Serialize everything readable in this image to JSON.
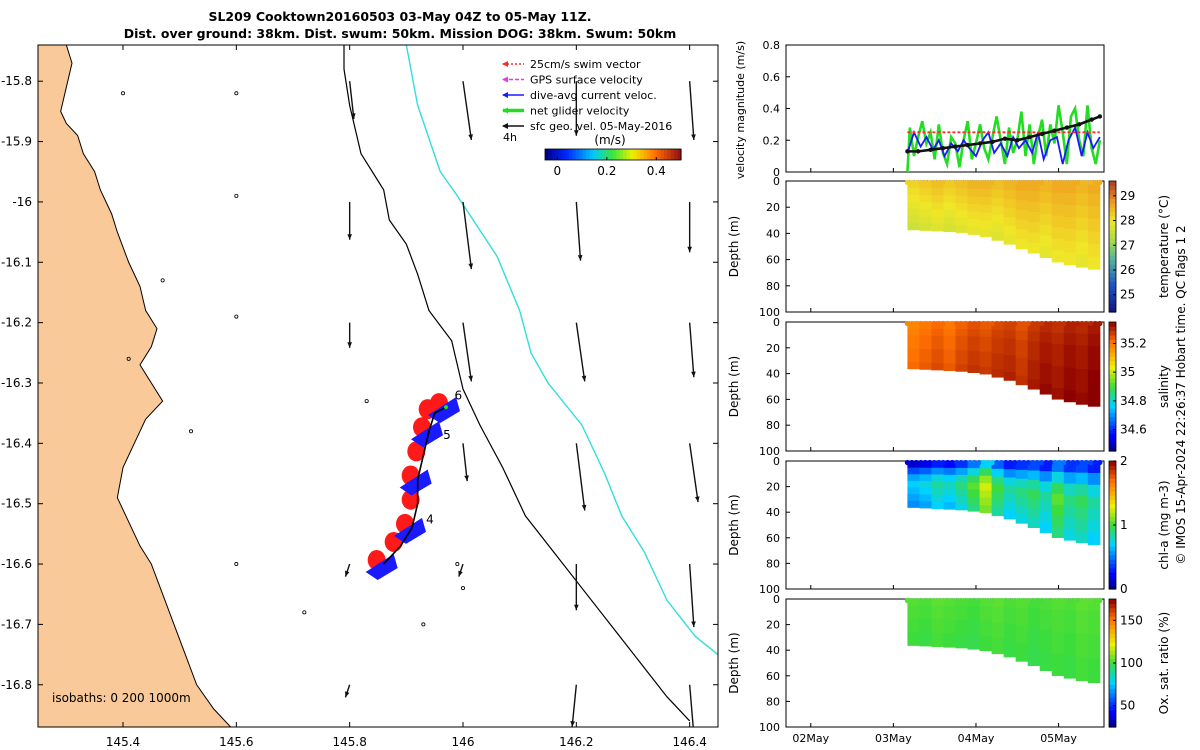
{
  "header": {
    "title_line1": "SL209 Cooktown20160503 03-May 04Z to 05-May 11Z.",
    "title_line2": "Dist. over ground: 38km. Dist. swum: 50km. Mission DOG: 38km. Swum: 50km"
  },
  "colors": {
    "land": "#f9c99a",
    "track": "#000000",
    "isobath": "#33dddd",
    "swim_vector": "#ff2a2a",
    "gps_velocity": "#ee33ee",
    "dive_current": "#1a1aff",
    "net_velocity": "#22dd22",
    "geostrophic": "#111111"
  },
  "chart_data": [
    {
      "type": "scatter",
      "subtype": "map",
      "xlabel": "",
      "ylabel": "",
      "xlim": [
        145.25,
        146.45
      ],
      "ylim": [
        -16.87,
        -15.74
      ],
      "x_ticks": [
        "145.4",
        "145.6",
        "145.8",
        "146",
        "146.2",
        "146.4"
      ],
      "x_tick_values": [
        145.4,
        145.6,
        145.8,
        146.0,
        146.2,
        146.4
      ],
      "y_ticks": [
        "-15.8",
        "-15.9",
        "-16",
        "-16.1",
        "-16.2",
        "-16.3",
        "-16.4",
        "-16.5",
        "-16.6",
        "-16.7",
        "-16.8"
      ],
      "y_tick_values": [
        -15.8,
        -15.9,
        -16.0,
        -16.1,
        -16.2,
        -16.3,
        -16.4,
        -16.5,
        -16.6,
        -16.7,
        -16.8
      ],
      "legend": [
        {
          "label": "25cm/s swim vector",
          "color": "#ff2a2a",
          "style": "dotted"
        },
        {
          "label": "GPS surface velocity",
          "color": "#ee33ee",
          "style": "dashed"
        },
        {
          "label": "dive-avg current veloc.",
          "color": "#1a1aff",
          "style": "solid"
        },
        {
          "label": "net glider velocity",
          "color": "#22dd22",
          "style": "thick"
        },
        {
          "label": "sfc geo. vel. 05-May-2016",
          "color": "#111111",
          "style": "solid"
        }
      ],
      "legend_position": "top-right",
      "legend_extra": "4h",
      "colorbar": {
        "label": "(m/s)",
        "ticks": [
          "0",
          "0.2",
          "0.4"
        ],
        "tick_values": [
          0,
          0.2,
          0.4
        ],
        "range": [
          -0.05,
          0.5
        ],
        "colormap": "jet"
      },
      "isobath_note": "isobaths: 0   200  1000m",
      "track_labels": [
        {
          "text": "6",
          "lon": 145.985,
          "lat": -16.327
        },
        {
          "text": "5",
          "lon": 145.965,
          "lat": -16.393
        },
        {
          "text": "4",
          "lon": 145.935,
          "lat": -16.533
        }
      ],
      "track_200m": [
        [
          145.79,
          -15.74
        ],
        [
          145.79,
          -15.78
        ],
        [
          145.8,
          -15.84
        ],
        [
          145.82,
          -15.92
        ],
        [
          145.86,
          -15.98
        ],
        [
          145.87,
          -16.03
        ],
        [
          145.9,
          -16.07
        ],
        [
          145.92,
          -16.12
        ],
        [
          145.94,
          -16.18
        ],
        [
          145.98,
          -16.23
        ],
        [
          145.99,
          -16.27
        ],
        [
          146.0,
          -16.31
        ],
        [
          146.03,
          -16.37
        ],
        [
          146.07,
          -16.44
        ],
        [
          146.11,
          -16.52
        ],
        [
          146.16,
          -16.58
        ],
        [
          146.21,
          -16.64
        ],
        [
          146.26,
          -16.7
        ],
        [
          146.31,
          -16.76
        ],
        [
          146.36,
          -16.82
        ],
        [
          146.4,
          -16.86
        ]
      ],
      "track_1000m": [
        [
          145.9,
          -15.74
        ],
        [
          145.92,
          -15.84
        ],
        [
          145.96,
          -15.95
        ],
        [
          145.99,
          -15.99
        ],
        [
          146.06,
          -16.09
        ],
        [
          146.1,
          -16.18
        ],
        [
          146.12,
          -16.25
        ],
        [
          146.15,
          -16.3
        ],
        [
          146.21,
          -16.37
        ],
        [
          146.25,
          -16.45
        ],
        [
          146.28,
          -16.52
        ],
        [
          146.32,
          -16.58
        ],
        [
          146.36,
          -16.66
        ],
        [
          146.41,
          -16.72
        ],
        [
          146.45,
          -16.75
        ]
      ],
      "geostrophic_vectors": [
        {
          "lon": 145.8,
          "lat": -15.8,
          "u": 0.01,
          "v": -0.09
        },
        {
          "lon": 146.0,
          "lat": -15.8,
          "u": 0.02,
          "v": -0.14
        },
        {
          "lon": 146.2,
          "lat": -15.8,
          "u": 0.0,
          "v": -0.13
        },
        {
          "lon": 146.4,
          "lat": -15.8,
          "u": 0.01,
          "v": -0.14
        },
        {
          "lon": 145.8,
          "lat": -16.0,
          "u": 0.0,
          "v": -0.09
        },
        {
          "lon": 146.0,
          "lat": -16.0,
          "u": 0.02,
          "v": -0.16
        },
        {
          "lon": 146.2,
          "lat": -16.0,
          "u": 0.01,
          "v": -0.14
        },
        {
          "lon": 146.4,
          "lat": -16.0,
          "u": 0.0,
          "v": -0.12
        },
        {
          "lon": 145.8,
          "lat": -16.2,
          "u": 0.0,
          "v": -0.06
        },
        {
          "lon": 146.0,
          "lat": -16.2,
          "u": 0.02,
          "v": -0.14
        },
        {
          "lon": 146.2,
          "lat": -16.2,
          "u": 0.02,
          "v": -0.14
        },
        {
          "lon": 146.4,
          "lat": -16.2,
          "u": 0.01,
          "v": -0.13
        },
        {
          "lon": 146.0,
          "lat": -16.4,
          "u": 0.01,
          "v": -0.09
        },
        {
          "lon": 146.2,
          "lat": -16.4,
          "u": 0.02,
          "v": -0.16
        },
        {
          "lon": 146.4,
          "lat": -16.4,
          "u": 0.02,
          "v": -0.14
        },
        {
          "lon": 145.8,
          "lat": -16.6,
          "u": -0.01,
          "v": -0.03
        },
        {
          "lon": 146.0,
          "lat": -16.6,
          "u": -0.01,
          "v": -0.03
        },
        {
          "lon": 146.2,
          "lat": -16.6,
          "u": 0.0,
          "v": -0.11
        },
        {
          "lon": 146.4,
          "lat": -16.6,
          "u": 0.01,
          "v": -0.15
        },
        {
          "lon": 145.8,
          "lat": -16.8,
          "u": -0.01,
          "v": -0.03
        },
        {
          "lon": 146.2,
          "lat": -16.8,
          "u": -0.01,
          "v": -0.1
        },
        {
          "lon": 146.4,
          "lat": -16.8,
          "u": 0.01,
          "v": -0.12
        }
      ],
      "glider_track": [
        [
          145.86,
          -16.6
        ],
        [
          145.89,
          -16.57
        ],
        [
          145.91,
          -16.54
        ],
        [
          145.92,
          -16.5
        ],
        [
          145.92,
          -16.46
        ],
        [
          145.93,
          -16.42
        ],
        [
          145.94,
          -16.38
        ],
        [
          145.95,
          -16.35
        ],
        [
          145.97,
          -16.34
        ]
      ]
    },
    {
      "type": "line",
      "title": "",
      "xlabel": "",
      "ylabel": "velocity magnitude (m/s)",
      "ylim": [
        0,
        0.8
      ],
      "y_ticks": [
        "0",
        "0.2",
        "0.4",
        "0.6",
        "0.8"
      ],
      "x_ticks": [
        "02May",
        "03May",
        "04May",
        "05May"
      ],
      "x_tick_values": [
        2,
        3,
        4,
        5
      ],
      "xlim": [
        1.7,
        5.55
      ],
      "series": [
        {
          "color": "#22dd22",
          "x": [
            3.17,
            3.2,
            3.25,
            3.3,
            3.35,
            3.4,
            3.45,
            3.5,
            3.55,
            3.6,
            3.65,
            3.7,
            3.75,
            3.8,
            3.85,
            3.9,
            3.95,
            4.0,
            4.05,
            4.1,
            4.15,
            4.2,
            4.25,
            4.3,
            4.35,
            4.4,
            4.45,
            4.5,
            4.55,
            4.6,
            4.65,
            4.7,
            4.75,
            4.8,
            4.85,
            4.9,
            4.95,
            5.0,
            5.05,
            5.1,
            5.15,
            5.2,
            5.25,
            5.3,
            5.35,
            5.4,
            5.45,
            5.5
          ],
          "values": [
            0.0,
            0.28,
            0.1,
            0.22,
            0.32,
            0.18,
            0.25,
            0.08,
            0.3,
            0.12,
            0.05,
            0.22,
            0.18,
            0.03,
            0.2,
            0.32,
            0.08,
            0.18,
            0.3,
            0.15,
            0.08,
            0.22,
            0.35,
            0.2,
            0.05,
            0.28,
            0.12,
            0.2,
            0.38,
            0.1,
            0.3,
            0.05,
            0.22,
            0.33,
            0.1,
            0.3,
            0.18,
            0.42,
            0.25,
            0.05,
            0.35,
            0.4,
            0.2,
            0.1,
            0.42,
            0.15,
            0.05,
            0.2
          ]
        },
        {
          "color": "#1a1aff",
          "x": [
            3.17,
            3.25,
            3.33,
            3.4,
            3.48,
            3.55,
            3.62,
            3.7,
            3.78,
            3.85,
            3.92,
            4.0,
            4.08,
            4.15,
            4.22,
            4.3,
            4.38,
            4.45,
            4.52,
            4.6,
            4.68,
            4.75,
            4.82,
            4.9,
            4.98,
            5.05,
            5.12,
            5.2,
            5.28,
            5.35,
            5.42,
            5.5
          ],
          "values": [
            0.12,
            0.25,
            0.16,
            0.22,
            0.14,
            0.2,
            0.1,
            0.18,
            0.13,
            0.2,
            0.15,
            0.1,
            0.2,
            0.25,
            0.12,
            0.18,
            0.1,
            0.22,
            0.15,
            0.2,
            0.12,
            0.25,
            0.08,
            0.2,
            0.22,
            0.05,
            0.2,
            0.28,
            0.1,
            0.25,
            0.15,
            0.22
          ]
        },
        {
          "color": "#ff2a2a",
          "x": [
            3.17,
            5.5
          ],
          "values": [
            0.25,
            0.25
          ]
        },
        {
          "color": "#111111",
          "x": [
            3.17,
            3.3,
            3.45,
            3.6,
            3.75,
            3.9,
            4.05,
            4.2,
            4.35,
            4.5,
            4.65,
            4.8,
            4.95,
            5.1,
            5.25,
            5.4,
            5.5
          ],
          "values": [
            0.13,
            0.13,
            0.14,
            0.15,
            0.16,
            0.17,
            0.18,
            0.19,
            0.21,
            0.2,
            0.22,
            0.24,
            0.26,
            0.28,
            0.3,
            0.33,
            0.35
          ]
        }
      ]
    },
    {
      "type": "heatmap",
      "ylabel": "Depth (m)",
      "clabel": "temperature (°C)",
      "ylim": [
        100,
        0
      ],
      "y_ticks": [
        "0",
        "20",
        "40",
        "60",
        "80",
        "100"
      ],
      "c_ticks": [
        "25",
        "26",
        "27",
        "28",
        "29"
      ],
      "c_tick_values": [
        25,
        26,
        27,
        28,
        29
      ],
      "crange": [
        24.3,
        29.6
      ],
      "colormap": "thermal",
      "x_start": 3.17,
      "x_end": 5.5,
      "bottom_depth": [
        [
          3.17,
          37
        ],
        [
          3.5,
          38
        ],
        [
          3.8,
          39
        ],
        [
          4.1,
          42
        ],
        [
          4.4,
          48
        ],
        [
          4.7,
          55
        ],
        [
          5.0,
          62
        ],
        [
          5.3,
          66
        ],
        [
          5.5,
          68
        ]
      ],
      "values_by_column": [
        28.2,
        28.3,
        28.4,
        28.3,
        28.4,
        28.5,
        28.5,
        28.4,
        28.5,
        28.6,
        28.6,
        28.5,
        28.6,
        28.6,
        28.5,
        28.6
      ],
      "value_by_depth_offset": [
        0.0,
        -0.1,
        -0.2,
        -0.3,
        -0.4,
        -0.5,
        -0.6
      ]
    },
    {
      "type": "heatmap",
      "ylabel": "Depth (m)",
      "clabel": "salinity",
      "ylim": [
        100,
        0
      ],
      "y_ticks": [
        "0",
        "20",
        "40",
        "60",
        "80",
        "100"
      ],
      "c_ticks": [
        "34.6",
        "34.8",
        "35",
        "35.2"
      ],
      "c_tick_values": [
        34.6,
        34.8,
        35.0,
        35.2
      ],
      "crange": [
        34.45,
        35.35
      ],
      "colormap": "jet",
      "x_start": 3.17,
      "x_end": 5.5,
      "bottom_depth": [
        [
          3.17,
          36
        ],
        [
          3.5,
          37
        ],
        [
          3.8,
          38
        ],
        [
          4.1,
          40
        ],
        [
          4.4,
          45
        ],
        [
          4.7,
          52
        ],
        [
          5.0,
          60
        ],
        [
          5.3,
          64
        ],
        [
          5.5,
          66
        ]
      ],
      "values_by_column": [
        35.18,
        35.2,
        35.22,
        35.2,
        35.23,
        35.25,
        35.24,
        35.26,
        35.27,
        35.25,
        35.28,
        35.3,
        35.29,
        35.31,
        35.3,
        35.32
      ],
      "value_by_depth_offset": [
        0.0,
        0.01,
        0.02,
        0.02,
        0.03,
        0.03,
        0.04
      ]
    },
    {
      "type": "heatmap",
      "ylabel": "Depth (m)",
      "clabel": "chl-a (mg m-3)",
      "ylim": [
        100,
        0
      ],
      "y_ticks": [
        "0",
        "20",
        "40",
        "60",
        "80",
        "100"
      ],
      "c_ticks": [
        "0",
        "1",
        "2"
      ],
      "c_tick_values": [
        0,
        1,
        2
      ],
      "crange": [
        0,
        2
      ],
      "colormap": "jet",
      "x_start": 3.17,
      "x_end": 5.5,
      "bottom_depth": [
        [
          3.17,
          36
        ],
        [
          3.5,
          37
        ],
        [
          3.8,
          38
        ],
        [
          4.1,
          40
        ],
        [
          4.4,
          45
        ],
        [
          4.7,
          52
        ],
        [
          5.0,
          60
        ],
        [
          5.3,
          64
        ],
        [
          5.5,
          66
        ]
      ],
      "values_by_column": [
        0.55,
        0.6,
        0.7,
        0.65,
        0.75,
        0.9,
        1.1,
        0.85,
        0.7,
        0.75,
        0.8,
        0.7,
        0.9,
        0.75,
        0.8,
        0.7
      ],
      "value_by_depth_offset": [
        -0.4,
        -0.15,
        0.05,
        0.15,
        0.1,
        0.05,
        0.0
      ]
    },
    {
      "type": "heatmap",
      "ylabel": "Depth (m)",
      "clabel": "Ox. sat. ratio (%)",
      "ylim": [
        100,
        0
      ],
      "y_ticks": [
        "0",
        "20",
        "40",
        "60",
        "80",
        "100"
      ],
      "c_ticks": [
        "50",
        "100",
        "150"
      ],
      "c_tick_values": [
        50,
        100,
        150
      ],
      "crange": [
        25,
        175
      ],
      "colormap": "jet",
      "x_start": 3.17,
      "x_end": 5.5,
      "bottom_depth": [
        [
          3.17,
          36
        ],
        [
          3.5,
          37
        ],
        [
          3.8,
          38
        ],
        [
          4.1,
          40
        ],
        [
          4.4,
          45
        ],
        [
          4.7,
          52
        ],
        [
          5.0,
          60
        ],
        [
          5.3,
          64
        ],
        [
          5.5,
          66
        ]
      ],
      "values_by_column": [
        102,
        101,
        103,
        102,
        101,
        100,
        102,
        103,
        101,
        102,
        100,
        101,
        102,
        101,
        103,
        102
      ],
      "value_by_depth_offset": [
        1,
        0,
        0,
        -1,
        -1,
        -2,
        -2
      ]
    }
  ],
  "footer": {
    "credit": "© IMOS 15-Apr-2024 22:26:37 Hobart time. QC flags 1  2"
  }
}
